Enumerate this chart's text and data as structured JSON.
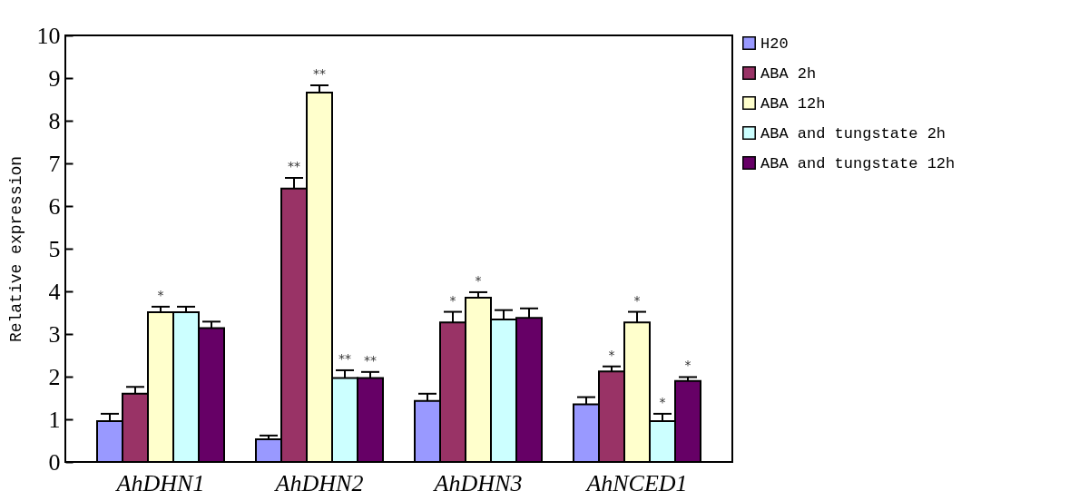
{
  "chart_data": {
    "type": "bar",
    "ylabel": "Relative expression",
    "categories": [
      "AhDHN1",
      "AhDHN2",
      "AhDHN3",
      "AhNCED1"
    ],
    "ylim": [
      0,
      10
    ],
    "yticks": [
      0,
      1,
      2,
      3,
      4,
      5,
      6,
      7,
      8,
      9,
      10
    ],
    "grid": false,
    "legend": "right",
    "series": [
      {
        "name": "H20",
        "color": "#9999ff",
        "values": [
          0.96,
          0.53,
          1.43,
          1.35
        ],
        "errors": [
          [
            0.96,
            1.13
          ],
          [
            0.53,
            0.62
          ],
          [
            1.43,
            1.6
          ],
          [
            1.35,
            1.52
          ]
        ],
        "value_labels": [
          null,
          null,
          null,
          null
        ]
      },
      {
        "name": "ABA 2h",
        "color": "#993366",
        "values": [
          1.6,
          6.41,
          3.27,
          2.12
        ],
        "errors": [
          [
            1.6,
            1.76
          ],
          [
            6.41,
            6.66
          ],
          [
            3.27,
            3.52
          ],
          [
            2.12,
            2.24
          ]
        ],
        "value_labels": [
          null,
          "**",
          "*",
          "*"
        ]
      },
      {
        "name": "ABA 12h",
        "color": "#ffffcc",
        "values": [
          3.51,
          8.66,
          3.85,
          3.27
        ],
        "errors": [
          [
            3.51,
            3.64
          ],
          [
            8.66,
            8.83
          ],
          [
            3.85,
            3.98
          ],
          [
            3.27,
            3.52
          ]
        ],
        "value_labels": [
          "*",
          "**",
          "*",
          "*"
        ]
      },
      {
        "name": "ABA and tungstate 2h",
        "color": "#ccffff",
        "values": [
          3.51,
          1.97,
          3.34,
          0.96
        ],
        "errors": [
          [
            3.51,
            3.64
          ],
          [
            1.97,
            2.15
          ],
          [
            3.34,
            3.56
          ],
          [
            0.96,
            1.13
          ]
        ],
        "value_labels": [
          null,
          "**",
          null,
          "*"
        ]
      },
      {
        "name": "ABA and tungstate 12h",
        "color": "#660066",
        "values": [
          3.14,
          1.97,
          3.38,
          1.9
        ],
        "errors": [
          [
            3.14,
            3.29
          ],
          [
            1.97,
            2.11
          ],
          [
            3.38,
            3.6
          ],
          [
            1.9,
            1.99
          ]
        ],
        "value_labels": [
          null,
          "**",
          null,
          "*"
        ]
      }
    ]
  }
}
